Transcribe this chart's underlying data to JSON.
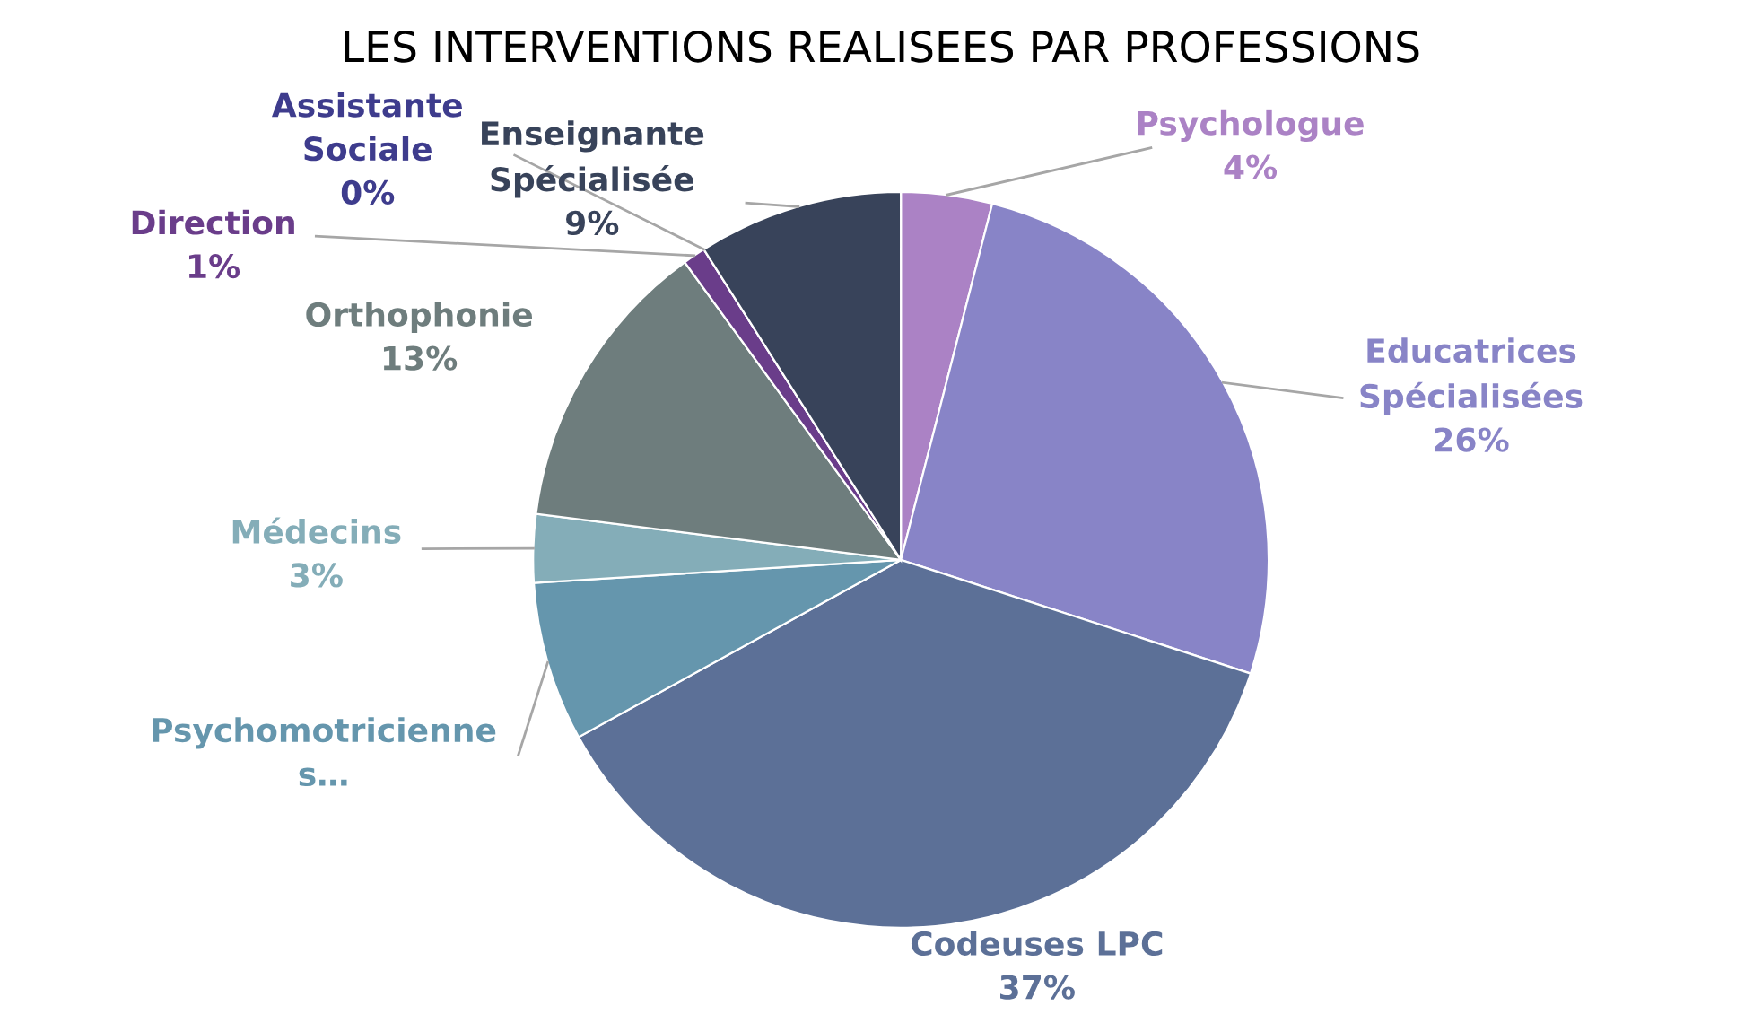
{
  "chart_data": {
    "type": "pie",
    "title": "LES INTERVENTIONS REALISEES PAR PROFESSIONS",
    "categories": [
      "Psychologue",
      "Educatrices\nSpécialisées",
      "Codeuses LPC",
      "Psychomotricienne\ns…",
      "Médecins",
      "Orthophonie",
      "Direction",
      "Assistante\nSociale",
      "Enseignante\nSpécialisée"
    ],
    "values": [
      4,
      26,
      37,
      7,
      3,
      13,
      1,
      0,
      9
    ],
    "value_labels": [
      "4%",
      "26%",
      "37%",
      null,
      "3%",
      "13%",
      "1%",
      "0%",
      "9%"
    ],
    "colors": [
      "#ab82c5",
      "#8884c7",
      "#5c7097",
      "#6596ad",
      "#84adb8",
      "#6e7d7d",
      "#6a3d8a",
      "#3e3c8d",
      "#38435a"
    ]
  }
}
